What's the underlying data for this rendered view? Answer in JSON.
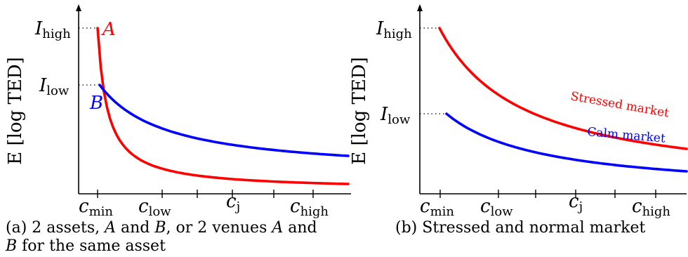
{
  "chart_data": [
    {
      "type": "line",
      "ylabel": "E [log TED]",
      "y_levels": [
        {
          "name": "high",
          "text": "I",
          "sub": "high"
        },
        {
          "name": "low",
          "text": "I",
          "sub": "low"
        }
      ],
      "x_ticks": [
        {
          "text": "c",
          "sub": "min"
        },
        {
          "text": "c",
          "sub": "low"
        },
        {
          "text": "c",
          "sub": "j"
        },
        {
          "text": "c",
          "sub": "high"
        }
      ],
      "series": [
        {
          "name": "A",
          "color": "#ff0000",
          "start": "high",
          "decay": "fast"
        },
        {
          "name": "B",
          "color": "#0000ff",
          "start": "low",
          "decay": "slow"
        }
      ],
      "caption_parts": [
        "(a) 2 assets, ",
        "A",
        " and ",
        "B",
        ", or 2 venues ",
        "A",
        " and ",
        "B",
        " for the same asset"
      ]
    },
    {
      "type": "line",
      "ylabel": "E [log TED]",
      "y_levels": [
        {
          "name": "high",
          "text": "I",
          "sub": "high"
        },
        {
          "name": "low",
          "text": "I",
          "sub": "low"
        }
      ],
      "x_ticks": [
        {
          "text": "c",
          "sub": "min"
        },
        {
          "text": "c",
          "sub": "low"
        },
        {
          "text": "c",
          "sub": "j"
        },
        {
          "text": "c",
          "sub": "high"
        }
      ],
      "series": [
        {
          "name": "Stressed market",
          "color": "#ff0000",
          "start": "high",
          "decay": "slow"
        },
        {
          "name": "Calm market",
          "color": "#0000ff",
          "start": "low",
          "decay": "slow"
        }
      ],
      "caption": "(b) Stressed and normal market"
    }
  ]
}
